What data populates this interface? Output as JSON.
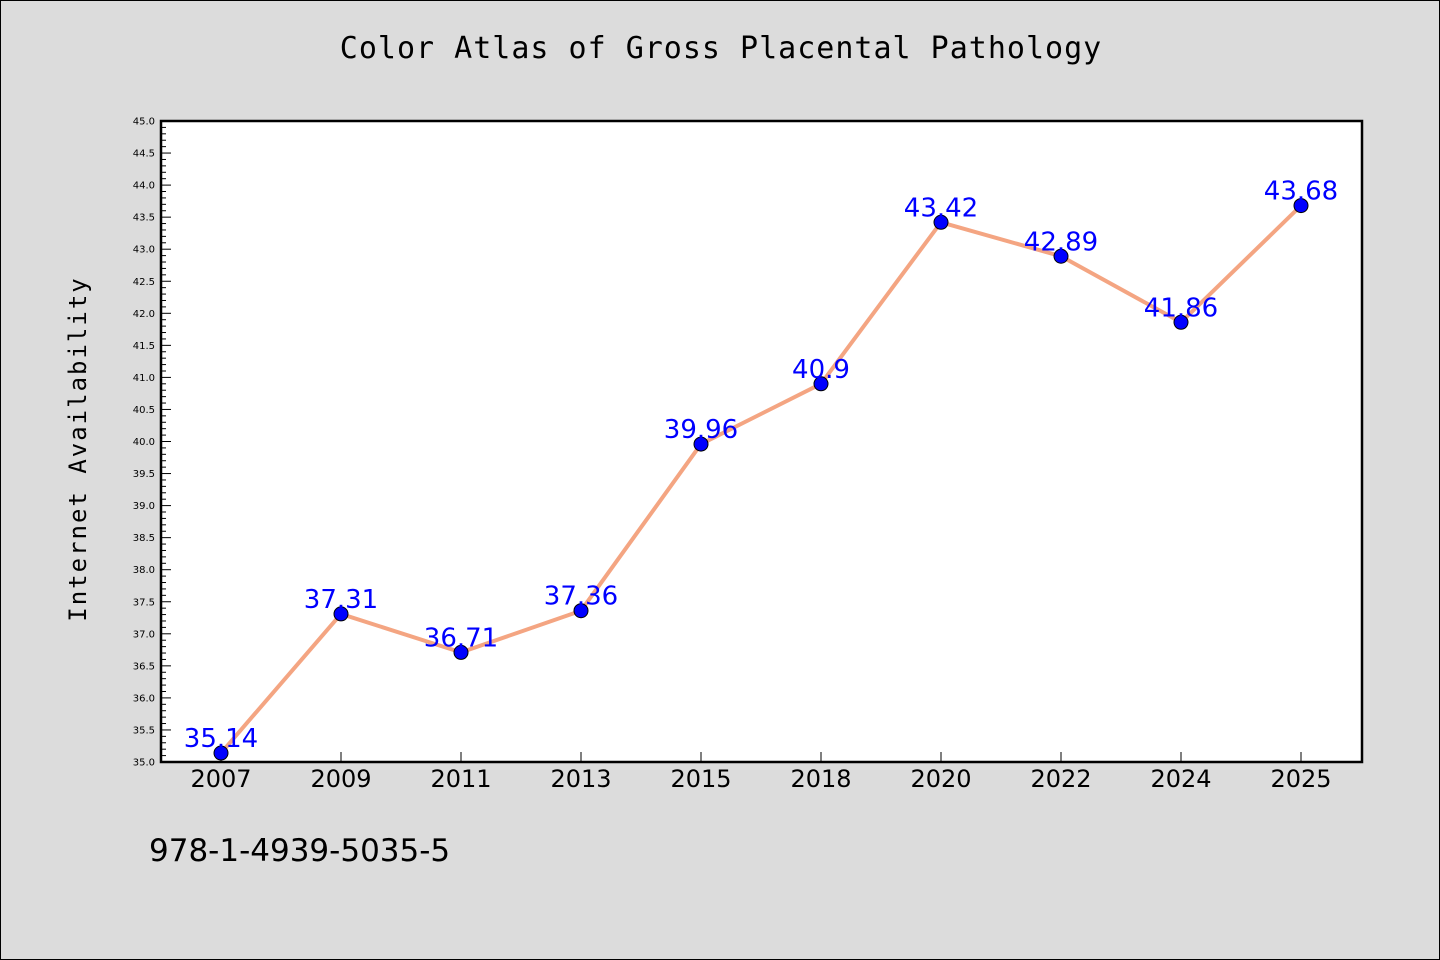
{
  "chart_data": {
    "type": "line",
    "title": "Color Atlas of Gross Placental Pathology",
    "xlabel": "",
    "ylabel": "Internet Availability",
    "categories": [
      "2007",
      "2009",
      "2011",
      "2013",
      "2015",
      "2018",
      "2020",
      "2022",
      "2024",
      "2025"
    ],
    "series": [
      {
        "values": [
          35.14,
          37.31,
          36.71,
          37.36,
          39.96,
          40.9,
          43.42,
          42.89,
          41.86,
          43.68
        ],
        "labels": [
          "35.14",
          "37.31",
          "36.71",
          "37.36",
          "39.96",
          "40.9",
          "43.42",
          "42.89",
          "41.86",
          "43.68"
        ],
        "line_color": "#f4a582",
        "marker_color": "#0000ff"
      }
    ],
    "ylim": [
      35.0,
      45.0
    ],
    "yticks": [
      "35.0",
      "35.5",
      "36.0",
      "36.5",
      "37.0",
      "37.5",
      "38.0",
      "38.5",
      "39.0",
      "39.5",
      "40.0",
      "40.5",
      "41.0",
      "41.5",
      "42.0",
      "42.5",
      "43.0",
      "43.5",
      "44.0",
      "44.5",
      "45.0"
    ],
    "grid": false,
    "legend": "none"
  },
  "footer": {
    "isbn": "978-1-4939-5035-5"
  },
  "colors": {
    "background": "#dcdcdc",
    "plot_area": "#ffffff",
    "data_label": "#0000ff"
  }
}
